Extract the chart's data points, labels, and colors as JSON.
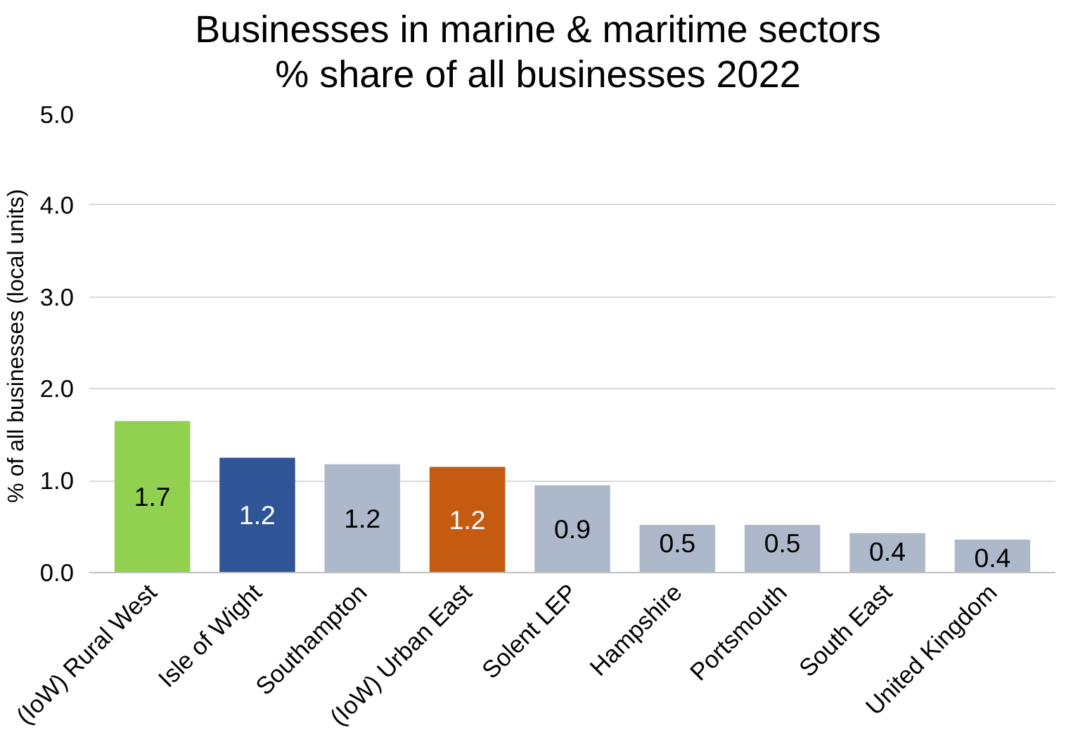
{
  "chart_data": {
    "type": "bar",
    "title": "Businesses in marine & maritime sectors\n% share of all businesses 2022",
    "ylabel": "%  of all businesses (local units)",
    "categories": [
      "(IoW) Rural West",
      "Isle of Wight",
      "Southampton",
      "(IoW) Urban East",
      "Solent LEP",
      "Hampshire",
      "Portsmouth",
      "South East",
      "United Kingdom"
    ],
    "values": [
      1.65,
      1.25,
      1.18,
      1.15,
      0.95,
      0.52,
      0.52,
      0.43,
      0.36
    ],
    "value_labels": [
      "1.7",
      "1.2",
      "1.2",
      "1.2",
      "0.9",
      "0.5",
      "0.5",
      "0.4",
      "0.4"
    ],
    "colors": [
      "#92d050",
      "#2f5597",
      "#adb9ca",
      "#c55a11",
      "#adb9ca",
      "#adb9ca",
      "#adb9ca",
      "#adb9ca",
      "#adb9ca"
    ],
    "ylim": [
      0,
      5
    ],
    "yticks": [
      {
        "value": 0,
        "label": "0.0"
      },
      {
        "value": 1,
        "label": "1.0"
      },
      {
        "value": 2,
        "label": "2.0"
      },
      {
        "value": 3,
        "label": "3.0"
      },
      {
        "value": 4,
        "label": "4.0"
      },
      {
        "value": 5,
        "label": "5.0"
      }
    ],
    "grid": "y"
  }
}
